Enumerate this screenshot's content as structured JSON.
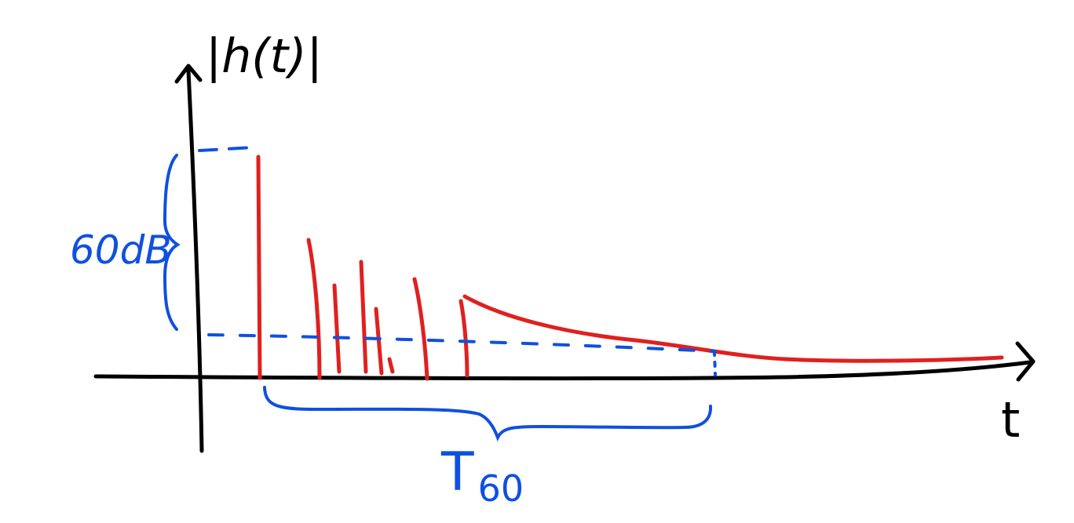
{
  "diagram": {
    "y_axis_label": "|h(t)|",
    "x_axis_label": "t",
    "level_label": "60dB",
    "time_label_main": "T",
    "time_label_sub": "60"
  },
  "colors": {
    "axes": "#000000",
    "impulse_response": "#e02020",
    "annotation": "#1050e0",
    "background": "#ffffff"
  }
}
